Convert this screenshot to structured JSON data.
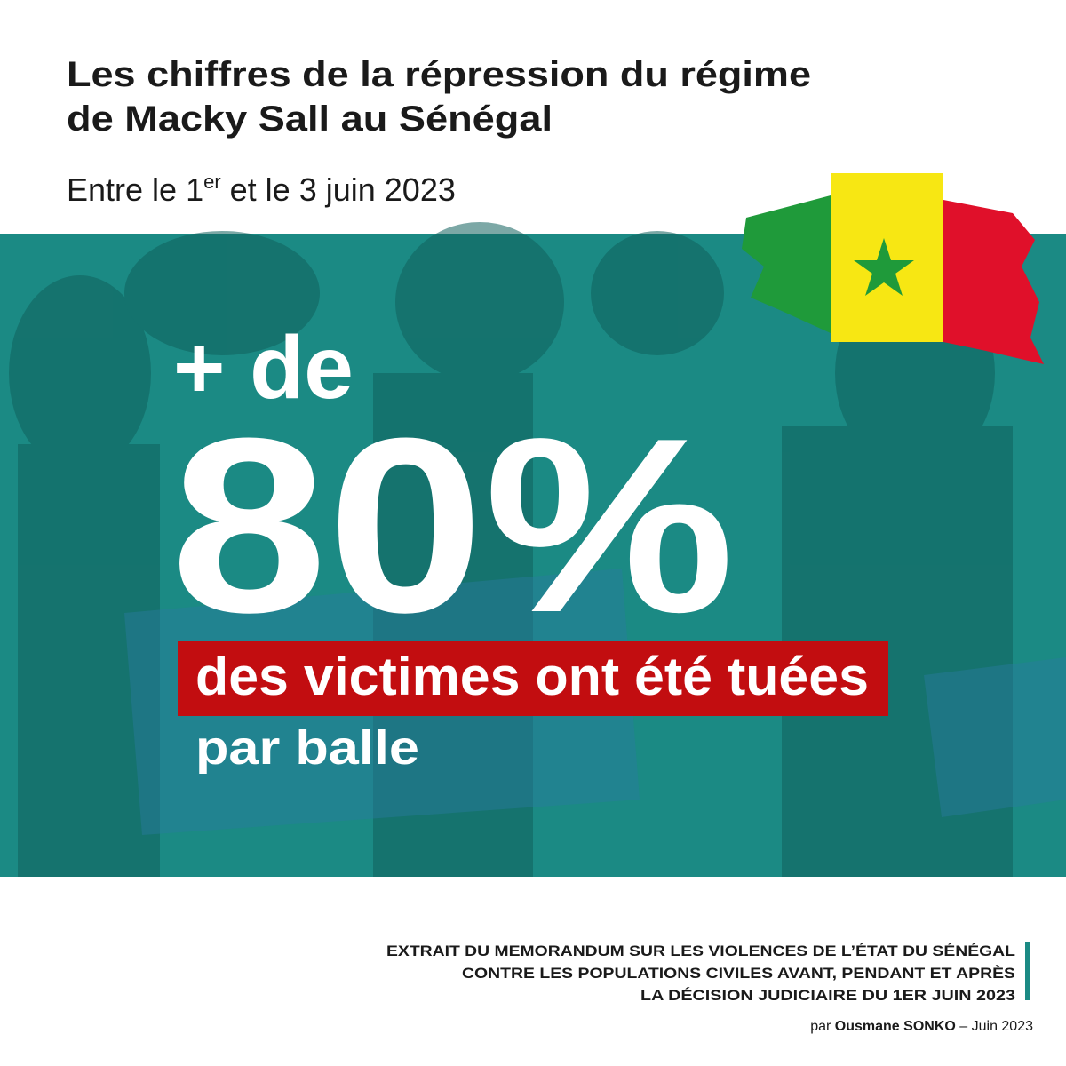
{
  "header": {
    "title": [
      "Les chiffres de la répression du régime",
      "de Macky Sall au Sénégal"
    ],
    "subtitle": {
      "before": "Entre le 1",
      "sup": "er",
      "after": " et le 3 juin 2023"
    }
  },
  "stat": {
    "prefix": "+ de",
    "figure": "80%",
    "highlight": "des victimes ont été tuées",
    "rest": "par balle"
  },
  "source": {
    "lines": [
      "EXTRAIT DU MEMORANDUM SUR LES VIOLENCES DE L’ÉTAT DU SÉNÉGAL",
      "CONTRE LES POPULATIONS CIVILES AVANT, PENDANT ET APRÈS",
      "LA DÉCISION JUDICIAIRE DU 1ER JUIN 2023"
    ],
    "by": "par",
    "author": "Ousmane SONKO",
    "date": "– Juin 2023"
  }
}
